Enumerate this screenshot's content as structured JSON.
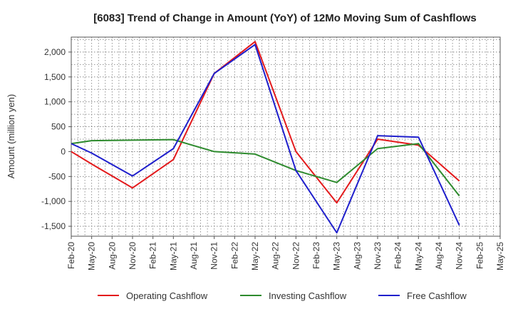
{
  "chart_data": {
    "type": "line",
    "title": "[6083]  Trend of Change in Amount (YoY) of 12Mo Moving Sum of Cashflows",
    "xlabel": "",
    "ylabel": "Amount (million yen)",
    "ylim": [
      -1700,
      2300
    ],
    "yticks": [
      2000,
      1500,
      1000,
      500,
      0,
      -500,
      -1000,
      -1500
    ],
    "ytick_labels": [
      "2,000",
      "1,500",
      "1,000",
      "500",
      "0",
      "-500",
      "-1,000",
      "-1,500"
    ],
    "categories": [
      "Feb-20",
      "May-20",
      "Aug-20",
      "Nov-20",
      "Feb-21",
      "May-21",
      "Aug-21",
      "Nov-21",
      "Feb-22",
      "May-22",
      "Aug-22",
      "Nov-22",
      "Feb-23",
      "May-23",
      "Aug-23",
      "Nov-23",
      "Feb-24",
      "May-24",
      "Aug-24",
      "Nov-24",
      "Feb-25",
      "May-25"
    ],
    "grid": true,
    "legend_position": "bottom",
    "series": [
      {
        "name": "Operating Cashflow",
        "color": "#e31a1c",
        "values": [
          0,
          -250,
          null,
          -730,
          null,
          -160,
          null,
          1570,
          null,
          2210,
          null,
          0,
          null,
          -1030,
          null,
          250,
          null,
          130,
          null,
          -590,
          null,
          null
        ]
      },
      {
        "name": "Investing Cashflow",
        "color": "#2e8b2e",
        "values": [
          160,
          220,
          null,
          230,
          null,
          240,
          null,
          0,
          null,
          -50,
          null,
          -380,
          null,
          -620,
          null,
          60,
          null,
          160,
          null,
          -890,
          null,
          null
        ]
      },
      {
        "name": "Free Cashflow",
        "color": "#1f1fcc",
        "values": [
          160,
          -30,
          null,
          -490,
          null,
          60,
          null,
          1570,
          null,
          2150,
          null,
          -380,
          null,
          -1630,
          null,
          320,
          null,
          290,
          null,
          -1480,
          null,
          null
        ]
      }
    ]
  }
}
